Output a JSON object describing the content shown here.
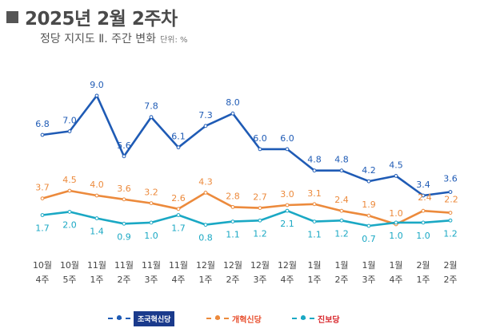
{
  "header": {
    "title": "2025년 2월 2주차",
    "subtitle": "정당 지지도 Ⅱ. 주간 변화",
    "unit": "단위: %"
  },
  "colors": {
    "series1": "#1f5bb5",
    "series2": "#ec8a3c",
    "series3": "#1aa8c4"
  },
  "chart_data": {
    "type": "line",
    "categories": [
      [
        "10월",
        "4주"
      ],
      [
        "10월",
        "5주"
      ],
      [
        "11월",
        "1주"
      ],
      [
        "11월",
        "2주"
      ],
      [
        "11월",
        "3주"
      ],
      [
        "11월",
        "4주"
      ],
      [
        "12월",
        "1주"
      ],
      [
        "12월",
        "2주"
      ],
      [
        "12월",
        "3주"
      ],
      [
        "12월",
        "4주"
      ],
      [
        "1월",
        "1주"
      ],
      [
        "1월",
        "2주"
      ],
      [
        "1월",
        "3주"
      ],
      [
        "1월",
        "4주"
      ],
      [
        "2월",
        "1주"
      ],
      [
        "2월",
        "2주"
      ]
    ],
    "series": [
      {
        "name": "조국혁신당",
        "color": "#1f5bb5",
        "values": [
          6.8,
          7.0,
          9.0,
          5.6,
          7.8,
          6.1,
          7.3,
          8.0,
          6.0,
          6.0,
          4.8,
          4.8,
          4.2,
          4.5,
          3.4,
          3.6
        ]
      },
      {
        "name": "개혁신당",
        "color": "#ec8a3c",
        "values": [
          3.7,
          4.5,
          4.0,
          3.6,
          3.2,
          2.6,
          4.3,
          2.8,
          2.7,
          3.0,
          3.1,
          2.4,
          1.9,
          1.0,
          2.4,
          2.2
        ]
      },
      {
        "name": "진보당",
        "color": "#1aa8c4",
        "values": [
          1.7,
          2.0,
          1.4,
          0.9,
          1.0,
          1.7,
          0.8,
          1.1,
          1.2,
          2.1,
          1.1,
          1.2,
          0.7,
          1.0,
          1.0,
          1.2
        ]
      }
    ],
    "legend_position": "bottom",
    "grid": false
  }
}
